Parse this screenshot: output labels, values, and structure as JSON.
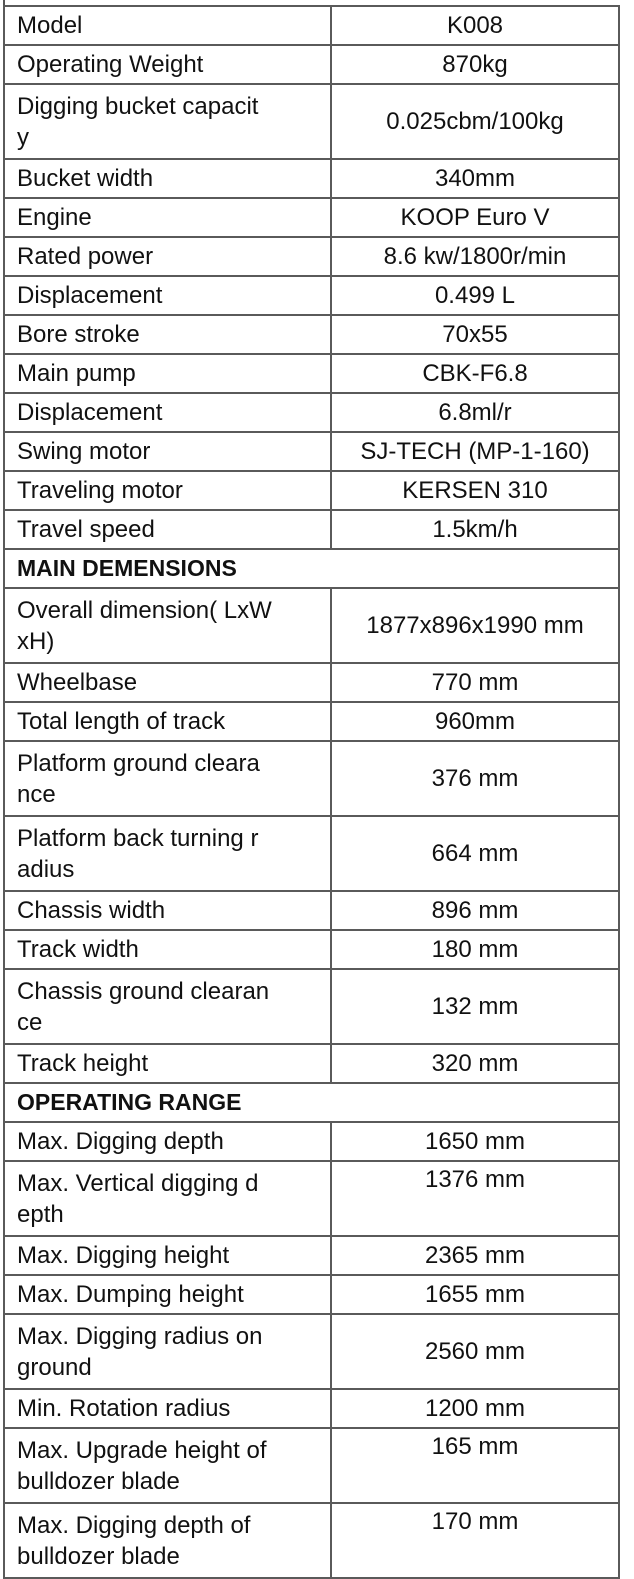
{
  "spec_table": {
    "rows": [
      {
        "label": "Model",
        "value": "K008"
      },
      {
        "label": "Operating Weight",
        "value": "870kg"
      },
      {
        "label": "Digging bucket capacit\ny",
        "value": "0.025cbm/100kg"
      },
      {
        "label": "Bucket width",
        "value": "340mm"
      },
      {
        "label": "Engine",
        "value": "KOOP Euro V"
      },
      {
        "label": "Rated power",
        "value": "8.6 kw/1800r/min"
      },
      {
        "label": "Displacement",
        "value": "0.499 L"
      },
      {
        "label": "Bore stroke",
        "value": "70x55"
      },
      {
        "label": "Main pump",
        "value": "CBK-F6.8"
      },
      {
        "label": "Displacement",
        "value": "6.8ml/r"
      },
      {
        "label": "Swing motor",
        "value": "SJ-TECH (MP-1-160)"
      },
      {
        "label": "Traveling motor",
        "value": "KERSEN 310"
      },
      {
        "label": "Travel speed",
        "value": "1.5km/h"
      },
      {
        "header": "MAIN DEMENSIONS"
      },
      {
        "label": "Overall dimension( LxW\nxH)",
        "value": "1877x896x1990 mm"
      },
      {
        "label": "Wheelbase",
        "value": "770 mm"
      },
      {
        "label": "Total length of track",
        "value": "960mm"
      },
      {
        "label": "Platform ground cleara\nnce",
        "value": "376 mm"
      },
      {
        "label": "Platform back turning r\nadius",
        "value": "664 mm"
      },
      {
        "label": "Chassis width",
        "value": "896 mm"
      },
      {
        "label": "Track width",
        "value": "180 mm"
      },
      {
        "label": "Chassis ground clearan\nce",
        "value": "132 mm"
      },
      {
        "label": "Track height",
        "value": "320 mm"
      },
      {
        "header": "OPERATING RANGE"
      },
      {
        "label": "Max. Digging depth",
        "value": "1650 mm"
      },
      {
        "label": "Max. Vertical digging d\nepth",
        "value": "1376 mm",
        "value_align": "top"
      },
      {
        "label": "Max. Digging height",
        "value": "2365 mm"
      },
      {
        "label": "Max. Dumping height",
        "value": "1655 mm"
      },
      {
        "label": "Max. Digging radius on\nground",
        "value": "2560 mm"
      },
      {
        "label": "Min. Rotation radius",
        "value": "1200 mm"
      },
      {
        "label": "Max. Upgrade height of\nbulldozer blade",
        "value": "165 mm",
        "value_align": "top"
      },
      {
        "label": "Max. Digging depth of\nbulldozer blade",
        "value": "170 mm",
        "value_align": "top"
      }
    ]
  }
}
